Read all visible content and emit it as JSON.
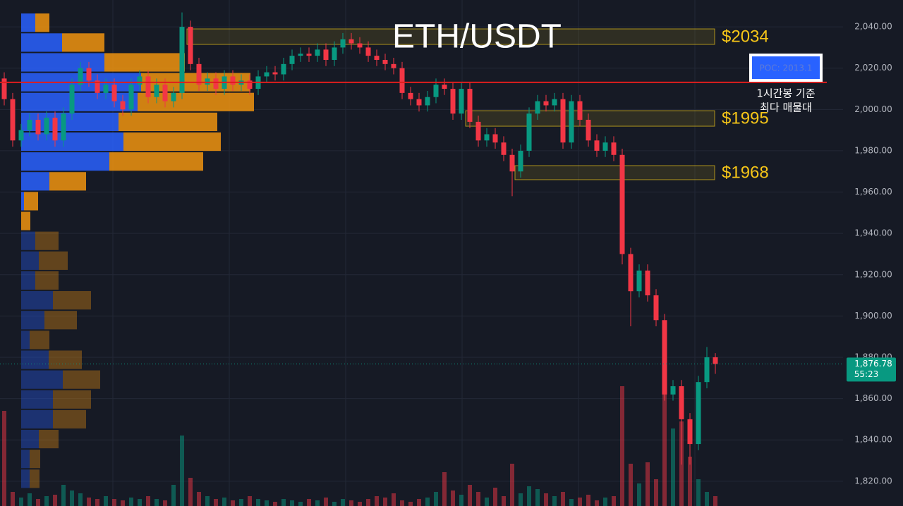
{
  "chart_data": {
    "type": "candlestick",
    "title": "ETH/USDT",
    "ylim": [
      1808,
      2053
    ],
    "yticks": [
      {
        "value": 1820,
        "label": "1,820.00"
      },
      {
        "value": 1840,
        "label": "1,840.00"
      },
      {
        "value": 1860,
        "label": "1,860.00"
      },
      {
        "value": 1880,
        "label": "1,880.00"
      },
      {
        "value": 1900,
        "label": "1,900.00"
      },
      {
        "value": 1920,
        "label": "1,920.00"
      },
      {
        "value": 1940,
        "label": "1,940.00"
      },
      {
        "value": 1960,
        "label": "1,960.00"
      },
      {
        "value": 1980,
        "label": "1,980.00"
      },
      {
        "value": 2000,
        "label": "2,000.00"
      },
      {
        "value": 2020,
        "label": "2,020.00"
      },
      {
        "value": 2040,
        "label": "2,040.00"
      }
    ],
    "up_color": "#089981",
    "down_color": "#f23645",
    "open": [
      2015,
      2005,
      1985,
      1990,
      1995,
      1988,
      1996,
      1985,
      1998,
      2012,
      2020,
      2014,
      2008,
      2012,
      2004,
      2000,
      2012,
      2016,
      2006,
      2012,
      2004,
      2008,
      2040,
      2022,
      2012,
      2015,
      2010,
      2016,
      2012,
      2014,
      2010,
      2016,
      2018,
      2017,
      2022,
      2026,
      2027,
      2026,
      2029,
      2024,
      2030,
      2034,
      2032,
      2030,
      2026,
      2024,
      2022,
      2020,
      2008,
      2005,
      2002,
      2006,
      2012,
      2010,
      1998,
      2010,
      1994,
      1985,
      1988,
      1984,
      1978,
      1970,
      1980,
      1998,
      2004,
      2002,
      2005,
      1984,
      2004,
      1995,
      1985,
      1980,
      1984,
      1978,
      1930,
      1912,
      1922,
      1910,
      1898,
      1862,
      1866,
      1850,
      1838,
      1868,
      1880
    ],
    "high": [
      2018,
      2008,
      1993,
      1998,
      1998,
      1999,
      1999,
      2001,
      2015,
      2023,
      2023,
      2017,
      2015,
      2015,
      2007,
      2015,
      2019,
      2019,
      2015,
      2015,
      2011,
      2047,
      2043,
      2025,
      2018,
      2018,
      2019,
      2019,
      2017,
      2017,
      2019,
      2021,
      2021,
      2025,
      2029,
      2030,
      2030,
      2032,
      2032,
      2033,
      2037,
      2037,
      2035,
      2033,
      2029,
      2027,
      2025,
      2023,
      2011,
      2008,
      2009,
      2015,
      2015,
      2013,
      2013,
      2013,
      1997,
      1991,
      1991,
      1987,
      1981,
      1983,
      2001,
      2007,
      2007,
      2008,
      2008,
      2007,
      2007,
      1998,
      1988,
      1987,
      1987,
      1981,
      1933,
      1925,
      1925,
      1913,
      1901,
      1869,
      1869,
      1853,
      1871,
      1885,
      1882
    ],
    "low": [
      2002,
      1982,
      1982,
      1987,
      1985,
      1985,
      1982,
      1982,
      1995,
      2009,
      2011,
      2005,
      2005,
      2001,
      1997,
      1997,
      2009,
      2003,
      2003,
      2001,
      2001,
      2005,
      2019,
      2009,
      2009,
      2007,
      2007,
      2009,
      2009,
      2007,
      2007,
      2013,
      2014,
      2014,
      2019,
      2023,
      2023,
      2023,
      2021,
      2021,
      2027,
      2029,
      2027,
      2023,
      2021,
      2019,
      2017,
      2005,
      2002,
      1999,
      1999,
      2003,
      2007,
      1995,
      1995,
      1991,
      1982,
      1982,
      1981,
      1975,
      1958,
      1967,
      1977,
      1995,
      1999,
      1999,
      1981,
      1981,
      1992,
      1982,
      1977,
      1977,
      1975,
      1925,
      1895,
      1909,
      1907,
      1895,
      1859,
      1859,
      1828,
      1828,
      1835,
      1865,
      1872
    ],
    "close": [
      2005,
      1985,
      1990,
      1995,
      1988,
      1996,
      1985,
      1998,
      2012,
      2020,
      2014,
      2008,
      2012,
      2004,
      2000,
      2012,
      2016,
      2006,
      2012,
      2004,
      2008,
      2040,
      2022,
      2012,
      2015,
      2010,
      2016,
      2012,
      2014,
      2010,
      2016,
      2018,
      2017,
      2022,
      2026,
      2027,
      2026,
      2029,
      2024,
      2030,
      2034,
      2032,
      2030,
      2026,
      2024,
      2022,
      2020,
      2008,
      2005,
      2002,
      2006,
      2012,
      2010,
      1998,
      2010,
      1994,
      1985,
      1988,
      1984,
      1978,
      1970,
      1980,
      1998,
      2004,
      2002,
      2005,
      1984,
      2004,
      1995,
      1985,
      1980,
      1984,
      1978,
      1930,
      1912,
      1922,
      1910,
      1898,
      1862,
      1866,
      1850,
      1838,
      1868,
      1880,
      1876.78
    ],
    "volume": [
      135,
      20,
      12,
      18,
      10,
      14,
      16,
      30,
      22,
      18,
      12,
      10,
      14,
      10,
      8,
      12,
      10,
      14,
      10,
      8,
      30,
      100,
      40,
      20,
      14,
      10,
      12,
      8,
      10,
      14,
      10,
      8,
      6,
      10,
      8,
      6,
      10,
      8,
      12,
      6,
      10,
      8,
      6,
      10,
      14,
      12,
      18,
      8,
      6,
      10,
      12,
      20,
      48,
      22,
      16,
      30,
      20,
      12,
      26,
      14,
      60,
      18,
      28,
      24,
      18,
      14,
      20,
      10,
      12,
      16,
      8,
      12,
      14,
      170,
      60,
      32,
      62,
      38,
      170,
      110,
      120,
      70,
      38,
      20,
      14
    ],
    "profile": {
      "levels": [
        2042,
        2032.4,
        2022.8,
        2013.2,
        2003.6,
        1994,
        1984.4,
        1974.8,
        1965.2,
        1955.6,
        1946,
        1936.4,
        1926.8,
        1917.2,
        1907.6,
        1898,
        1888.4,
        1878.8,
        1869.2,
        1859.6,
        1850,
        1840.4,
        1830.8,
        1821.2
      ],
      "buy": [
        20,
        58,
        118,
        170,
        165,
        138,
        145,
        125,
        40,
        4,
        0,
        20,
        25,
        20,
        45,
        33,
        12,
        39,
        59,
        45,
        45,
        25,
        12,
        12
      ],
      "sell": [
        20,
        60,
        114,
        155,
        165,
        140,
        138,
        133,
        52,
        20,
        13,
        33,
        41,
        33,
        54,
        46,
        28,
        47,
        53,
        54,
        47,
        28,
        15,
        14
      ],
      "buy_color": "#2962ff",
      "sell_color": "#f0940f",
      "value_area": [
        1941,
        2047
      ]
    },
    "zones": [
      {
        "low": 2031.5,
        "high": 2039,
        "label": "$2034"
      },
      {
        "low": 1991.9,
        "high": 1999.4,
        "label": "$1995"
      },
      {
        "low": 1966,
        "high": 1972.8,
        "label": "$1968"
      }
    ],
    "zone_color": "#e8c21a",
    "poc": {
      "value": 2013.1,
      "label": "POC: 2013.1",
      "note": [
        "1시간봉 기준",
        "최다 매물대"
      ],
      "color": "#e01e1e"
    },
    "last_price": {
      "value": 1876.78,
      "label": "1,876.78"
    },
    "countdown": "55:23"
  }
}
